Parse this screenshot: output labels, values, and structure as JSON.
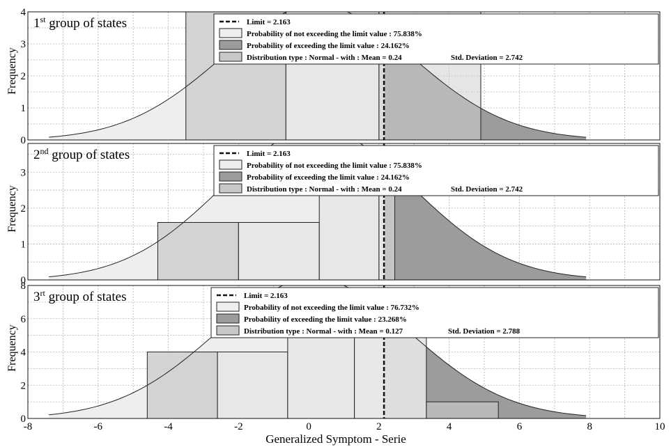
{
  "page": {
    "xlabel": "Generalized Symptom - Serie",
    "ylabel": "Frequency",
    "x_ticks": [
      "-8",
      "-6",
      "-4",
      "-2",
      "0",
      "2",
      "4",
      "6",
      "8",
      "10"
    ]
  },
  "chart_data": [
    {
      "type": "bar",
      "group_label": {
        "num": "1",
        "sup": "st",
        "rest": " group of states"
      },
      "x_range": [
        -8,
        10
      ],
      "ylim": [
        0,
        4
      ],
      "y_ticks": [
        "0",
        "1",
        "2",
        "3",
        "4"
      ],
      "limit": 2.163,
      "histogram": [
        {
          "x0": -3.5,
          "x1": -0.65,
          "count": 4
        },
        {
          "x0": -0.65,
          "x1": 2.0,
          "count": 4
        },
        {
          "x0": 2.0,
          "x1": 4.9,
          "count": 4
        }
      ],
      "normal_curve": {
        "mean": 0.24,
        "std": 2.742,
        "peak": 4.2
      },
      "legend": [
        {
          "marker": "dash",
          "text": "Limit = 2.163"
        },
        {
          "marker": "light",
          "text": "Probability of not exceeding the limit value  : 75.838%"
        },
        {
          "marker": "dark",
          "text": "Probability of exceeding the limit value : 24.162%"
        },
        {
          "marker": "mid",
          "text": "Distribution type : Normal    -    with :  Mean = 0.24",
          "text2": "Std. Deviation = 2.742"
        }
      ]
    },
    {
      "type": "bar",
      "group_label": {
        "num": "2",
        "sup": "nd",
        "rest": " group of states"
      },
      "x_range": [
        -8,
        10
      ],
      "ylim": [
        0,
        3.8
      ],
      "y_ticks": [
        "0",
        "1",
        "2",
        "3"
      ],
      "limit": 2.163,
      "histogram": [
        {
          "x0": -4.3,
          "x1": -2.0,
          "count": 1.6
        },
        {
          "x0": -2.0,
          "x1": 0.3,
          "count": 1.6
        },
        {
          "x0": 0.3,
          "x1": 2.0,
          "count": 2.4
        },
        {
          "x0": 2.0,
          "x1": 2.45,
          "count": 2.4
        }
      ],
      "normal_curve": {
        "mean": 0.24,
        "std": 2.742,
        "peak": 4.2
      },
      "legend": [
        {
          "marker": "dash",
          "text": "Limit = 2.163"
        },
        {
          "marker": "light",
          "text": "Probability of not exceeding the limit value  : 75.838%"
        },
        {
          "marker": "dark",
          "text": "Probability of exceeding the limit value : 24.162%"
        },
        {
          "marker": "mid",
          "text": "Distribution type : Normal    -    with :  Mean = 0.24",
          "text2": "Std. Deviation = 2.742"
        }
      ]
    },
    {
      "type": "bar",
      "group_label": {
        "num": "3",
        "sup": "rt",
        "rest": " group of states"
      },
      "x_range": [
        -8,
        10
      ],
      "ylim": [
        0,
        8
      ],
      "y_ticks": [
        "0",
        "2",
        "4",
        "6",
        "8"
      ],
      "limit": 2.163,
      "histogram": [
        {
          "x0": -4.6,
          "x1": -2.6,
          "count": 4
        },
        {
          "x0": -2.6,
          "x1": -0.6,
          "count": 4
        },
        {
          "x0": -0.6,
          "x1": 1.3,
          "count": 5.2
        },
        {
          "x0": 1.3,
          "x1": 3.35,
          "count": 5.2
        },
        {
          "x0": 3.35,
          "x1": 5.4,
          "count": 1
        }
      ],
      "normal_curve": {
        "mean": 0.127,
        "std": 2.788,
        "peak": 8.4
      },
      "legend": [
        {
          "marker": "dash",
          "text": "Limit = 2.163"
        },
        {
          "marker": "light",
          "text": "Probability of not exceeding the limit value  : 76.732%"
        },
        {
          "marker": "dark",
          "text": "Probability of exceeding the limit value : 23.268%"
        },
        {
          "marker": "mid",
          "text": "Distribution type : Normal   -    with :  Mean = 0.127",
          "text2": "Std. Deviation = 2.788"
        }
      ]
    }
  ],
  "colors": {
    "light_fill": "#eeeeee",
    "mid_fill": "#c8c8c8",
    "dark_fill": "#9c9c9c",
    "hist_light": "#e6e6e6",
    "hist_mid": "#cfcfcf",
    "grid": "#b0b0b0",
    "stroke": "#222222"
  }
}
